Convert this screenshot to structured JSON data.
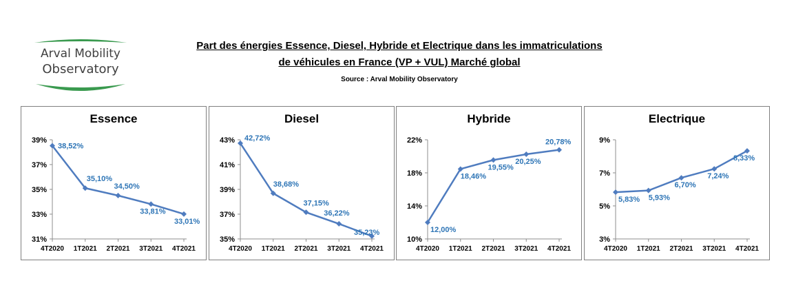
{
  "logo": {
    "line1": "Arval Mobility",
    "line2": "Observatory"
  },
  "header": {
    "title_line1": "Part des énergies Essence, Diesel, Hybride et Electrique dans les immatriculations ",
    "title_line2": "de véhicules en France (VP + VUL) Marché global",
    "source": "Source : Arval Mobility Observatory"
  },
  "colors": {
    "series": "#4f7cbf",
    "label": "#2e75b6",
    "logo_green": "#3a9a4f"
  },
  "chart_data": [
    {
      "type": "line",
      "title": "Essence",
      "categories": [
        "4T2020",
        "1T2021",
        "2T2021",
        "3T2021",
        "4T2021"
      ],
      "values": [
        38.52,
        35.1,
        34.5,
        33.81,
        33.01
      ],
      "data_labels": [
        "38,52%",
        "35,10%",
        "34,50%",
        "33,81%",
        "33,01%"
      ],
      "yticks": [
        "31%",
        "33%",
        "35%",
        "37%",
        "39%"
      ],
      "ylim": [
        31,
        39
      ],
      "grid": false
    },
    {
      "type": "line",
      "title": "Diesel",
      "categories": [
        "4T2020",
        "1T2021",
        "2T2021",
        "3T2021",
        "4T2021"
      ],
      "values": [
        42.72,
        38.68,
        37.15,
        36.22,
        35.23
      ],
      "data_labels": [
        "42,72%",
        "38,68%",
        "37,15%",
        "36,22%",
        "35,23%"
      ],
      "yticks": [
        "35%",
        "37%",
        "39%",
        "41%",
        "43%"
      ],
      "ylim": [
        35,
        43
      ],
      "grid": false
    },
    {
      "type": "line",
      "title": "Hybride",
      "categories": [
        "4T2020",
        "1T2021",
        "2T2021",
        "3T2021",
        "4T2021"
      ],
      "values": [
        12.0,
        18.46,
        19.55,
        20.25,
        20.78
      ],
      "data_labels": [
        "12,00%",
        "18,46%",
        "19,55%",
        "20,25%",
        "20,78%"
      ],
      "yticks": [
        "10%",
        "14%",
        "18%",
        "22%"
      ],
      "ylim": [
        10,
        22
      ],
      "grid": false
    },
    {
      "type": "line",
      "title": "Electrique",
      "categories": [
        "4T2020",
        "1T2021",
        "2T2021",
        "3T2021",
        "4T2021"
      ],
      "values": [
        5.83,
        5.93,
        6.7,
        7.24,
        8.33
      ],
      "data_labels": [
        "5,83%",
        "5,93%",
        "6,70%",
        "7,24%",
        "8,33%"
      ],
      "yticks": [
        "3%",
        "5%",
        "7%",
        "9%"
      ],
      "ylim": [
        3,
        9
      ],
      "grid": false
    }
  ]
}
